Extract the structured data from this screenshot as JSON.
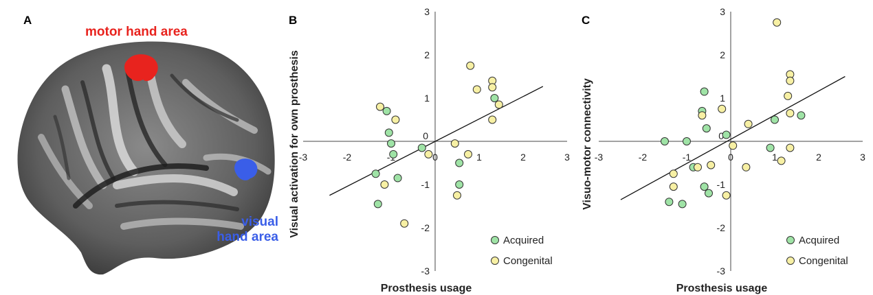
{
  "panels": {
    "a_letter": "A",
    "b_letter": "B",
    "c_letter": "C"
  },
  "brain": {
    "motor_label": "motor hand area",
    "visual_label_line1": "visual",
    "visual_label_line2": "hand area",
    "motor_color": "#e8231e",
    "visual_color": "#3a5ee8"
  },
  "colors": {
    "acquired": "#9fe3a6",
    "congenital": "#f7f0a4"
  },
  "chart_data": [
    {
      "type": "scatter",
      "panel": "B",
      "xlabel": "Prosthesis usage",
      "ylabel": "Visual activation for own prosthesis",
      "xlim": [
        -3,
        3
      ],
      "ylim": [
        -3,
        3
      ],
      "xticks": [
        "-3",
        "-2",
        "-1",
        "0",
        "1",
        "2",
        "3"
      ],
      "yticks": [
        "3",
        "2",
        "1",
        "0",
        "-1",
        "-2",
        "-3"
      ],
      "legend": "bottom-right",
      "trendline": {
        "x": [
          -2.4,
          2.45
        ],
        "y": [
          -1.25,
          1.27
        ]
      },
      "series": [
        {
          "name": "Acquired",
          "points": [
            [
              -1.35,
              -0.75
            ],
            [
              -1.3,
              -1.45
            ],
            [
              -1.1,
              0.7
            ],
            [
              -1.05,
              0.2
            ],
            [
              -1.0,
              -0.05
            ],
            [
              -0.95,
              -0.3
            ],
            [
              -0.85,
              -0.85
            ],
            [
              -0.3,
              -0.15
            ],
            [
              0.55,
              -0.5
            ],
            [
              0.55,
              -1.0
            ],
            [
              1.35,
              1.0
            ]
          ]
        },
        {
          "name": "Congenital",
          "points": [
            [
              -1.25,
              0.8
            ],
            [
              -1.15,
              -1.0
            ],
            [
              -0.9,
              0.5
            ],
            [
              -0.7,
              -1.9
            ],
            [
              -0.15,
              -0.3
            ],
            [
              0.45,
              -0.05
            ],
            [
              0.5,
              -1.25
            ],
            [
              0.75,
              -0.3
            ],
            [
              0.8,
              1.75
            ],
            [
              0.95,
              1.2
            ],
            [
              1.3,
              1.4
            ],
            [
              1.3,
              1.25
            ],
            [
              1.3,
              0.5
            ],
            [
              1.45,
              0.85
            ]
          ]
        }
      ]
    },
    {
      "type": "scatter",
      "panel": "C",
      "xlabel": "Prosthesis usage",
      "ylabel": "Visuo-motor connectivity",
      "xlim": [
        -3,
        3
      ],
      "ylim": [
        -3,
        3
      ],
      "xticks": [
        "-3",
        "-2",
        "-1",
        "0",
        "1",
        "2",
        "3"
      ],
      "yticks": [
        "3",
        "2",
        "1",
        "0",
        "-1",
        "-2",
        "-3"
      ],
      "legend": "bottom-right",
      "trendline": {
        "x": [
          -2.5,
          2.6
        ],
        "y": [
          -1.35,
          1.5
        ]
      },
      "series": [
        {
          "name": "Acquired",
          "points": [
            [
              -1.5,
              0.0
            ],
            [
              -1.4,
              -1.4
            ],
            [
              -1.1,
              -1.45
            ],
            [
              -1.0,
              0.0
            ],
            [
              -0.85,
              -0.6
            ],
            [
              -0.6,
              1.15
            ],
            [
              -0.65,
              0.7
            ],
            [
              -0.6,
              -1.05
            ],
            [
              -0.55,
              0.3
            ],
            [
              -0.5,
              -1.2
            ],
            [
              -0.1,
              0.15
            ],
            [
              0.9,
              -0.15
            ],
            [
              1.0,
              0.5
            ],
            [
              1.6,
              0.6
            ]
          ]
        },
        {
          "name": "Congenital",
          "points": [
            [
              -1.3,
              -0.75
            ],
            [
              -1.3,
              -1.05
            ],
            [
              -0.75,
              -0.6
            ],
            [
              -0.65,
              0.6
            ],
            [
              -0.45,
              -0.55
            ],
            [
              -0.2,
              0.75
            ],
            [
              -0.1,
              -1.25
            ],
            [
              0.05,
              -0.1
            ],
            [
              0.35,
              -0.6
            ],
            [
              0.4,
              0.4
            ],
            [
              1.05,
              2.75
            ],
            [
              1.15,
              -0.45
            ],
            [
              1.3,
              1.05
            ],
            [
              1.35,
              1.55
            ],
            [
              1.35,
              1.4
            ],
            [
              1.35,
              0.65
            ],
            [
              1.35,
              -0.15
            ]
          ]
        }
      ]
    }
  ]
}
